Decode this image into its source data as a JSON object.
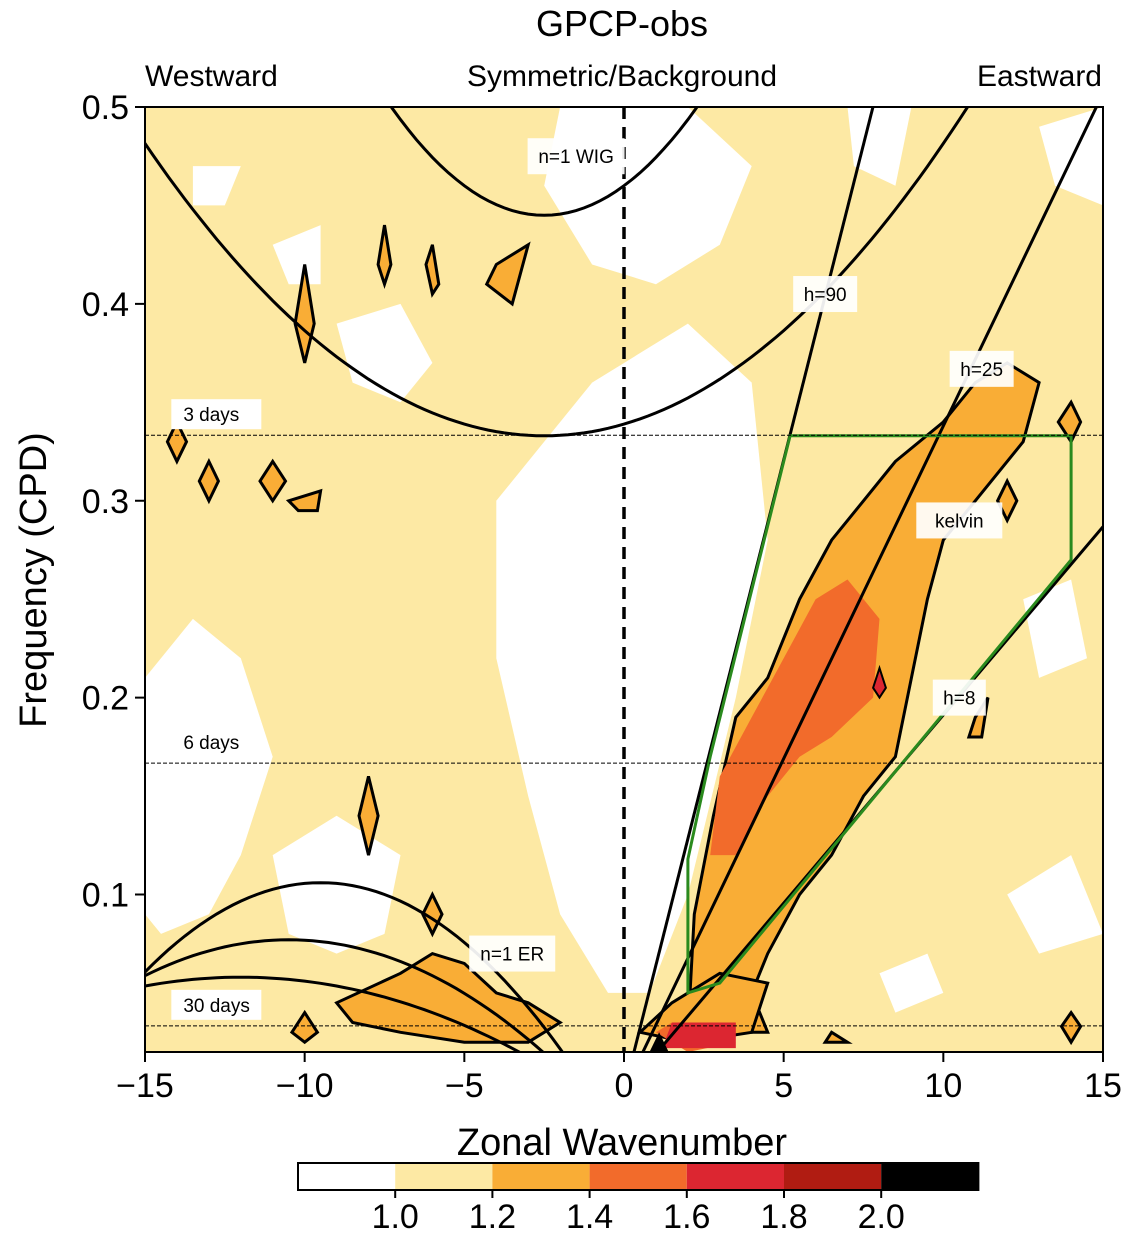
{
  "chart_data": {
    "type": "heatmap",
    "title": "GPCP-obs",
    "subtitle_left": "Westward",
    "subtitle_center": "Symmetric/Background",
    "subtitle_right": "Eastward",
    "xlabel": "Zonal Wavenumber",
    "ylabel": "Frequency (CPD)",
    "xlim": [
      -15,
      15
    ],
    "ylim": [
      0.02,
      0.5
    ],
    "xticks": [
      -15,
      -10,
      -5,
      0,
      5,
      10,
      15
    ],
    "xtick_labels": [
      "−15",
      "−10",
      "−5",
      "0",
      "5",
      "10",
      "15"
    ],
    "yticks": [
      0.1,
      0.2,
      0.3,
      0.4,
      0.5
    ],
    "ytick_labels": [
      "0.1",
      "0.2",
      "0.3",
      "0.4",
      "0.5"
    ],
    "period_lines": [
      {
        "label": "3 days",
        "freq": 0.3333
      },
      {
        "label": "6 days",
        "freq": 0.1667
      },
      {
        "label": "30 days",
        "freq": 0.0333
      }
    ],
    "wave_labels": [
      {
        "text": "n=1 WIG",
        "k": -1.5,
        "freq": 0.475
      },
      {
        "text": "h=90",
        "k": 6.3,
        "freq": 0.405
      },
      {
        "text": "h=25",
        "k": 11.2,
        "freq": 0.367
      },
      {
        "text": "kelvin",
        "k": 10.5,
        "freq": 0.29
      },
      {
        "text": "h=8",
        "k": 10.5,
        "freq": 0.2
      },
      {
        "text": "n=1 ER",
        "k": -3.5,
        "freq": 0.07
      }
    ],
    "colorbar": {
      "tick_labels": [
        "1.0",
        "1.2",
        "1.4",
        "1.6",
        "1.8",
        "2.0"
      ],
      "levels": [
        1.0,
        1.2,
        1.4,
        1.6,
        1.8,
        2.0
      ],
      "colors": [
        "#ffffff",
        "#fde9a4",
        "#f9ad36",
        "#f26b2b",
        "#dc2631",
        "#b01c12",
        "#000000"
      ]
    },
    "dispersion_curves": {
      "kelvin_equivalent_depths_m": [
        90,
        25,
        8
      ],
      "wig_n1_min_freq": 0.333,
      "wig_n1_min_freq_outer": 0.445,
      "er_n1_peak_freq": 0.106
    },
    "kelvin_filter_box_color": "#2a8a1e",
    "regions_1_2_to_1_4": [
      {
        "k": 2,
        "freq": 0.05
      },
      {
        "k": 3,
        "freq": 0.12
      },
      {
        "k": 5,
        "freq": 0.2
      },
      {
        "k": 7,
        "freq": 0.26
      },
      {
        "k": 9,
        "freq": 0.32
      },
      {
        "k": 12,
        "freq": 0.34
      }
    ],
    "regions_1_4_to_1_6": [
      {
        "k": 3,
        "freq": 0.14
      },
      {
        "k": 6,
        "freq": 0.22
      },
      {
        "k": 7,
        "freq": 0.22
      }
    ],
    "regions_above_1_6": [
      {
        "k": 1.5,
        "freq": 0.03
      },
      {
        "k": 3,
        "freq": 0.03
      }
    ]
  }
}
